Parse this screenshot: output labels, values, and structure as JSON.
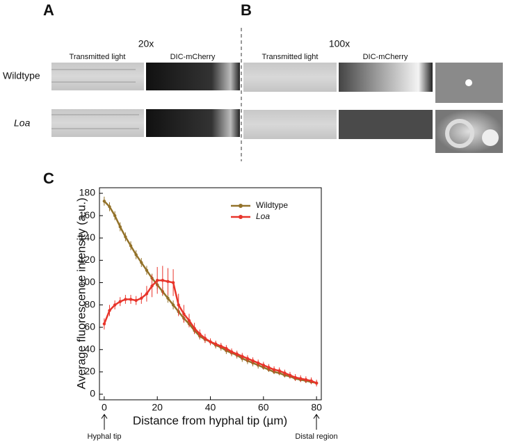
{
  "panels": {
    "a": {
      "label": "A",
      "magnification": "20x",
      "columns": [
        "Transmitted light",
        "DIC-mCherry"
      ]
    },
    "b": {
      "label": "B",
      "magnification": "100x",
      "columns": [
        "Transmitted light",
        "DIC-mCherry"
      ]
    },
    "c": {
      "label": "C"
    }
  },
  "rows": [
    "Wildtype",
    "Loa"
  ],
  "chart_data": {
    "type": "line",
    "xlabel": "Distance from hyphal tip (µm)",
    "ylabel": "Average fluorescence intensity (a.u.)",
    "annotations": [
      "Hyphal tip",
      "Distal region"
    ],
    "x": [
      0,
      2,
      4,
      6,
      8,
      10,
      12,
      14,
      16,
      18,
      20,
      22,
      24,
      26,
      28,
      30,
      32,
      34,
      36,
      38,
      40,
      42,
      44,
      46,
      48,
      50,
      52,
      54,
      56,
      58,
      60,
      62,
      64,
      66,
      68,
      70,
      72,
      74,
      76,
      78,
      80
    ],
    "series": [
      {
        "name": "Wildtype",
        "color": "#93722a",
        "values": [
          173,
          168,
          160,
          150,
          141,
          133,
          125,
          118,
          111,
          104,
          98,
          92,
          86,
          80,
          74,
          68,
          63,
          57,
          52,
          49,
          47,
          44,
          42,
          39,
          37,
          35,
          32,
          30,
          28,
          26,
          24,
          22,
          20,
          19,
          17,
          16,
          14,
          13,
          12,
          11,
          10
        ],
        "errors": [
          4,
          4,
          4,
          4,
          4,
          4,
          4,
          4,
          4,
          4,
          4,
          4,
          4,
          4,
          3,
          3,
          3,
          3,
          3,
          3,
          3,
          3,
          3,
          3,
          3,
          3,
          3,
          3,
          3,
          3,
          2,
          2,
          2,
          2,
          2,
          2,
          2,
          2,
          2,
          2,
          2
        ]
      },
      {
        "name": "Loa",
        "color": "#e8342a",
        "values": [
          63,
          75,
          80,
          83,
          85,
          85,
          84,
          86,
          90,
          97,
          102,
          102,
          101,
          100,
          80,
          72,
          66,
          59,
          54,
          50,
          47,
          45,
          43,
          41,
          38,
          36,
          34,
          32,
          30,
          28,
          26,
          24,
          22,
          21,
          19,
          17,
          15,
          14,
          13,
          12,
          10
        ],
        "errors": [
          5,
          5,
          4,
          4,
          4,
          4,
          4,
          5,
          7,
          10,
          12,
          13,
          12,
          12,
          10,
          8,
          6,
          5,
          4,
          4,
          3,
          3,
          3,
          3,
          3,
          3,
          3,
          3,
          3,
          3,
          3,
          3,
          3,
          3,
          3,
          3,
          3,
          3,
          3,
          3,
          3
        ]
      }
    ],
    "xlim": [
      -1.8,
      81.8
    ],
    "ylim": [
      -5,
      185
    ],
    "xticks": [
      0,
      20,
      40,
      60,
      80
    ],
    "yticks": [
      0,
      20,
      40,
      60,
      80,
      100,
      120,
      140,
      160,
      180
    ],
    "legend": "upper right"
  }
}
